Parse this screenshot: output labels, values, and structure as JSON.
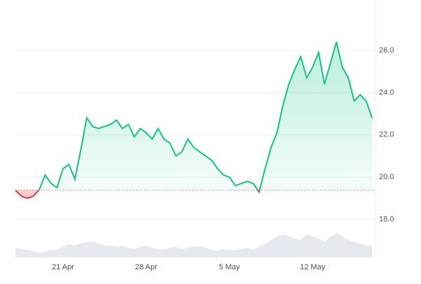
{
  "chart_data": {
    "type": "line",
    "categories": [
      null,
      null,
      null,
      null,
      null,
      null,
      null,
      null,
      "21 Apr",
      null,
      null,
      null,
      null,
      null,
      null,
      null,
      null,
      null,
      null,
      null,
      null,
      null,
      "28 Apr",
      null,
      null,
      null,
      null,
      null,
      null,
      null,
      null,
      null,
      null,
      null,
      null,
      null,
      "5 May",
      null,
      null,
      null,
      null,
      null,
      null,
      null,
      null,
      null,
      null,
      null,
      null,
      null,
      "12 May",
      null,
      null,
      null,
      null,
      null,
      null,
      null,
      null,
      null,
      null
    ],
    "series": [
      {
        "color": "#16c784",
        "values": [
          19.38,
          19.1,
          19.0,
          19.1,
          19.4,
          20.1,
          19.7,
          19.5,
          20.4,
          20.6,
          19.9,
          21.3,
          22.8,
          22.4,
          22.3,
          22.4,
          22.5,
          22.7,
          22.3,
          22.5,
          21.9,
          22.3,
          22.1,
          21.8,
          22.3,
          21.8,
          21.6,
          21.0,
          21.2,
          21.8,
          21.4,
          21.2,
          21.0,
          20.8,
          20.4,
          20.1,
          20.0,
          19.6,
          19.7,
          19.8,
          19.7,
          19.3,
          20.4,
          21.4,
          22.1,
          23.4,
          24.4,
          25.1,
          25.7,
          24.7,
          25.2,
          25.9,
          24.4,
          25.4,
          26.4,
          25.2,
          24.7,
          23.6,
          23.9,
          23.6,
          22.8
        ]
      }
    ],
    "below_color": "#ea3943",
    "volume": [
      25,
      22,
      20,
      15,
      12,
      14,
      18,
      20,
      28,
      35,
      30,
      38,
      40,
      42,
      35,
      30,
      32,
      28,
      30,
      25,
      22,
      28,
      30,
      25,
      22,
      20,
      25,
      28,
      22,
      25,
      28,
      30,
      25,
      20,
      18,
      22,
      20,
      18,
      22,
      25,
      20,
      28,
      35,
      45,
      55,
      60,
      55,
      50,
      45,
      60,
      55,
      50,
      40,
      55,
      62,
      55,
      45,
      40,
      35,
      30,
      32
    ],
    "volume_color": "#e6e9ed",
    "volume_lim": [
      0,
      100
    ],
    "ylim": [
      16.2,
      28.05
    ],
    "yticks": [
      {
        "value": 18,
        "label": "18.0"
      },
      {
        "value": 20,
        "label": "20.0"
      },
      {
        "value": 22,
        "label": "22.0"
      },
      {
        "value": 24,
        "label": "24.0"
      },
      {
        "value": 26,
        "label": "26.0"
      }
    ],
    "grid": true
  }
}
